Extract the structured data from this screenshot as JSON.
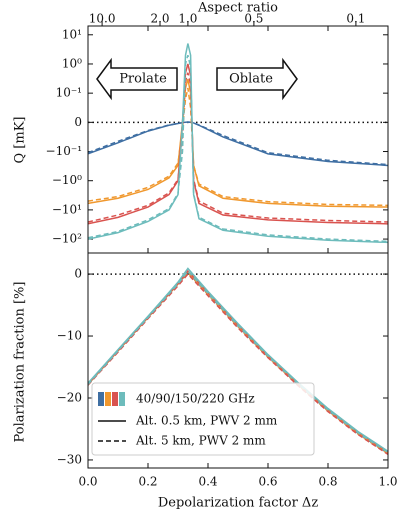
{
  "chart_data": {
    "type": "line",
    "xlabel": "Depolarization factor Δz",
    "x2label": "Aspect ratio",
    "xlim": [
      0,
      1
    ],
    "xticks": [
      {
        "value": 0,
        "label": "0.0"
      },
      {
        "value": 0.2,
        "label": "0.2"
      },
      {
        "value": 0.4,
        "label": "0.4"
      },
      {
        "value": 0.6,
        "label": "0.6"
      },
      {
        "value": 0.8,
        "label": "0.8"
      },
      {
        "value": 1,
        "label": "1.0"
      }
    ],
    "x2ticks": [
      {
        "value": 0.047,
        "label": "10.0"
      },
      {
        "value": 0.24,
        "label": "2.0"
      },
      {
        "value": 0.333,
        "label": "1.0"
      },
      {
        "value": 0.553,
        "label": "0.5"
      },
      {
        "value": 0.893,
        "label": "0.1"
      }
    ],
    "annotations": [
      {
        "text": "Prolate",
        "direction": "left",
        "x": 0.03
      },
      {
        "text": "Oblate",
        "direction": "right",
        "x": 0.43
      }
    ],
    "legend": {
      "loc": "lower left",
      "colors": [
        "#3f6fa3",
        "#f0982e",
        "#d9534f",
        "#6dbcbc"
      ],
      "colors_label": "40/90/150/220 GHz",
      "styles": [
        {
          "label": "Alt. 0.5 km, PWV 2 mm",
          "dashed": false
        },
        {
          "label": "Alt.    5 km, PWV 2 mm",
          "dashed": true
        }
      ]
    },
    "panels": [
      {
        "type": "line",
        "ylabel": "Q [mK]",
        "yscale": "symlog",
        "linthresh": 0.1,
        "ylim": [
          -300,
          20
        ],
        "zero_line": true,
        "yticks": [
          {
            "value": 10,
            "label": "10¹"
          },
          {
            "value": 1,
            "label": "10⁰"
          },
          {
            "value": 0.1,
            "label": "10⁻¹"
          },
          0,
          {
            "value": -0.1,
            "label": "−10⁻¹"
          },
          {
            "value": -1,
            "label": "−10⁰"
          },
          {
            "value": -10,
            "label": "−10¹"
          },
          {
            "value": -100,
            "label": "−10²"
          }
        ],
        "x": [
          0,
          0.1,
          0.2,
          0.27,
          0.3,
          0.315,
          0.325,
          0.333,
          0.342,
          0.352,
          0.37,
          0.45,
          0.6,
          0.8,
          1.0
        ],
        "series": [
          {
            "color": "#3f6fa3",
            "dashed": false,
            "values": [
              -0.12,
              -0.07,
              -0.03,
              -0.01,
              -0.004,
              -0.001,
              0.0005,
              0.001,
              0.0005,
              -0.002,
              -0.01,
              -0.05,
              -0.12,
              -0.22,
              -0.3
            ]
          },
          {
            "color": "#3f6fa3",
            "dashed": true,
            "values": [
              -0.11,
              -0.065,
              -0.028,
              -0.009,
              -0.004,
              -0.001,
              0.0004,
              0.0008,
              0.0004,
              -0.002,
              -0.009,
              -0.045,
              -0.11,
              -0.2,
              -0.28
            ]
          },
          {
            "color": "#f0982e",
            "dashed": false,
            "values": [
              -6,
              -4,
              -2,
              -0.8,
              -0.3,
              0,
              0.15,
              0.3,
              0.1,
              -0.3,
              -1.5,
              -4,
              -6,
              -7.5,
              -8
            ]
          },
          {
            "color": "#f0982e",
            "dashed": true,
            "values": [
              -5,
              -3.5,
              -1.7,
              -0.7,
              -0.25,
              -0.02,
              0.08,
              0.15,
              0.05,
              -0.3,
              -1.3,
              -3.5,
              -5.2,
              -6.5,
              -7
            ]
          },
          {
            "color": "#d9534f",
            "dashed": false,
            "values": [
              -30,
              -18,
              -8,
              -3,
              -1,
              0,
              0.5,
              1,
              0.4,
              -1,
              -6,
              -15,
              -22,
              -27,
              -30
            ]
          },
          {
            "color": "#d9534f",
            "dashed": true,
            "values": [
              -26,
              -15,
              -7,
              -2.6,
              -0.9,
              -0.05,
              0.25,
              0.5,
              0.2,
              -0.9,
              -5,
              -13,
              -19,
              -23,
              -26
            ]
          },
          {
            "color": "#6dbcbc",
            "dashed": false,
            "values": [
              -100,
              -60,
              -25,
              -10,
              -3,
              0,
              2,
              5,
              2,
              -3,
              -20,
              -50,
              -80,
              -110,
              -130
            ]
          },
          {
            "color": "#6dbcbc",
            "dashed": true,
            "values": [
              -90,
              -55,
              -22,
              -9,
              -2.7,
              -0.1,
              1,
              2,
              0.8,
              -2.8,
              -18,
              -45,
              -72,
              -100,
              -120
            ]
          }
        ]
      },
      {
        "type": "line",
        "ylabel": "Polarization fraction [%]",
        "yscale": "linear",
        "ylim": [
          -31.3,
          3.4
        ],
        "zero_line": true,
        "yticks": [
          0,
          {
            "value": -10,
            "label": "−10"
          },
          {
            "value": -20,
            "label": "−20"
          },
          {
            "value": -30,
            "label": "−30"
          }
        ],
        "x": [
          0,
          0.1,
          0.2,
          0.3,
          0.333,
          0.4,
          0.5,
          0.6,
          0.7,
          0.8,
          0.9,
          1.0
        ],
        "series": [
          {
            "color": "#3f6fa3",
            "dashed": false,
            "values": [
              -17.8,
              -12.4,
              -7,
              -1.6,
              0.3,
              -3.2,
              -8.4,
              -13.3,
              -17.8,
              -22,
              -25.7,
              -28.9
            ]
          },
          {
            "color": "#3f6fa3",
            "dashed": true,
            "values": [
              -17.9,
              -12.5,
              -7.1,
              -1.7,
              0.2,
              -3.3,
              -8.5,
              -13.4,
              -17.9,
              -22.1,
              -25.8,
              -29
            ]
          },
          {
            "color": "#f0982e",
            "dashed": false,
            "values": [
              -17.8,
              -12.4,
              -7,
              -1.6,
              0.4,
              -3.1,
              -8.3,
              -13.2,
              -17.7,
              -21.9,
              -25.6,
              -28.8
            ]
          },
          {
            "color": "#f0982e",
            "dashed": true,
            "values": [
              -17.9,
              -12.5,
              -7.1,
              -1.8,
              0.2,
              -3.3,
              -8.5,
              -13.4,
              -17.9,
              -22.1,
              -25.8,
              -29
            ]
          },
          {
            "color": "#d9534f",
            "dashed": false,
            "values": [
              -17.7,
              -12.3,
              -6.9,
              -1.5,
              0.5,
              -3,
              -8.2,
              -13.1,
              -17.6,
              -21.8,
              -25.5,
              -28.7
            ]
          },
          {
            "color": "#d9534f",
            "dashed": true,
            "values": [
              -17.9,
              -12.6,
              -7.2,
              -1.9,
              0,
              -3.5,
              -8.7,
              -13.5,
              -18,
              -22.2,
              -25.9,
              -29.1
            ]
          },
          {
            "color": "#6dbcbc",
            "dashed": false,
            "values": [
              -17.6,
              -12.2,
              -6.8,
              -1.3,
              0.9,
              -2.8,
              -8,
              -13,
              -17.5,
              -21.7,
              -25.4,
              -28.6
            ]
          },
          {
            "color": "#6dbcbc",
            "dashed": true,
            "values": [
              -17.8,
              -12.4,
              -7,
              -1.6,
              0.5,
              -3.1,
              -8.3,
              -13.2,
              -17.7,
              -21.9,
              -25.6,
              -28.8
            ]
          }
        ]
      }
    ]
  }
}
